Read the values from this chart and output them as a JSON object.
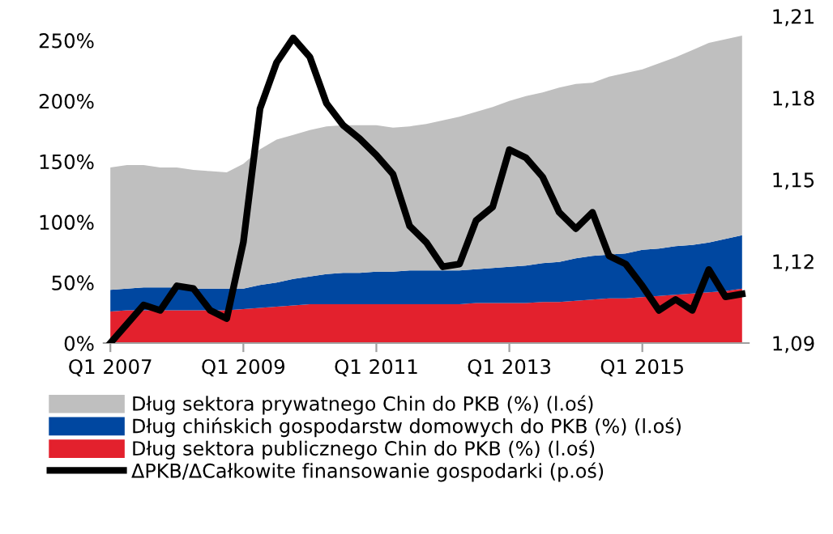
{
  "chart_data": {
    "type": "area",
    "stacked": true,
    "categories": [
      "Q1 2007",
      null,
      null,
      null,
      null,
      null,
      null,
      null,
      "Q1 2009",
      null,
      null,
      null,
      null,
      null,
      null,
      null,
      "Q1 2011",
      null,
      null,
      null,
      null,
      null,
      null,
      null,
      "Q1 2013",
      null,
      null,
      null,
      null,
      null,
      null,
      null,
      "Q1 2015",
      null,
      null,
      null,
      null,
      null,
      null
    ],
    "series": [
      {
        "name": "Dług sektora publicznego Chin do PKB (%) (l.oś)",
        "color": "#e3212d",
        "values": [
          26,
          27,
          27,
          27,
          27,
          27,
          27,
          27,
          28,
          29,
          30,
          31,
          32,
          32,
          32,
          32,
          32,
          32,
          32,
          32,
          32,
          32,
          33,
          33,
          33,
          33,
          34,
          34,
          35,
          36,
          37,
          37,
          38,
          39,
          40,
          41,
          42,
          43,
          45
        ]
      },
      {
        "name": "Dług chińskich gospodarstw domowych do PKB (%) (l.oś)",
        "color": "#0047a0",
        "values": [
          18,
          18,
          19,
          19,
          19,
          18,
          18,
          18,
          17,
          19,
          20,
          22,
          23,
          25,
          26,
          26,
          27,
          27,
          28,
          28,
          28,
          28,
          28,
          29,
          30,
          31,
          32,
          33,
          35,
          36,
          36,
          37,
          39,
          39,
          40,
          40,
          41,
          43,
          44
        ]
      },
      {
        "name": "Dług sektora prywatnego Chin do PKB (%) (l.oś)",
        "color": "#bfbfbf",
        "values": [
          101,
          102,
          101,
          99,
          99,
          98,
          97,
          96,
          103,
          112,
          118,
          119,
          121,
          122,
          122,
          122,
          121,
          119,
          119,
          121,
          124,
          127,
          130,
          133,
          137,
          140,
          141,
          144,
          144,
          143,
          147,
          149,
          149,
          153,
          156,
          161,
          165,
          165,
          165
        ]
      },
      {
        "name": "ΔPKB/ΔCałkowite finansowanie gospodarki (p.oś)",
        "type": "line",
        "axis": "y2",
        "color": "#000000",
        "values": [
          1.09,
          1.097,
          1.104,
          1.102,
          1.111,
          1.11,
          1.102,
          1.099,
          1.127,
          1.176,
          1.193,
          1.202,
          1.195,
          1.178,
          1.17,
          1.165,
          1.159,
          1.152,
          1.133,
          1.127,
          1.118,
          1.119,
          1.135,
          1.14,
          1.161,
          1.158,
          1.151,
          1.138,
          1.132,
          1.138,
          1.122,
          1.119,
          1.111,
          1.102,
          1.106,
          1.102,
          1.117,
          1.107,
          1.108
        ]
      }
    ],
    "ylim": [
      0,
      270
    ],
    "yticks": [
      {
        "value": 0,
        "label": "0%"
      },
      {
        "value": 50,
        "label": "50%"
      },
      {
        "value": 100,
        "label": "100%"
      },
      {
        "value": 150,
        "label": "150%"
      },
      {
        "value": 200,
        "label": "200%"
      },
      {
        "value": 250,
        "label": "250%"
      }
    ],
    "y2lim": [
      1.09,
      1.21
    ],
    "y2ticks": [
      {
        "value": 1.09,
        "label": "1,09"
      },
      {
        "value": 1.12,
        "label": "1,12"
      },
      {
        "value": 1.15,
        "label": "1,15"
      },
      {
        "value": 1.18,
        "label": "1,18"
      },
      {
        "value": 1.21,
        "label": "1,21"
      }
    ],
    "legend": "bottom",
    "grid": false
  }
}
